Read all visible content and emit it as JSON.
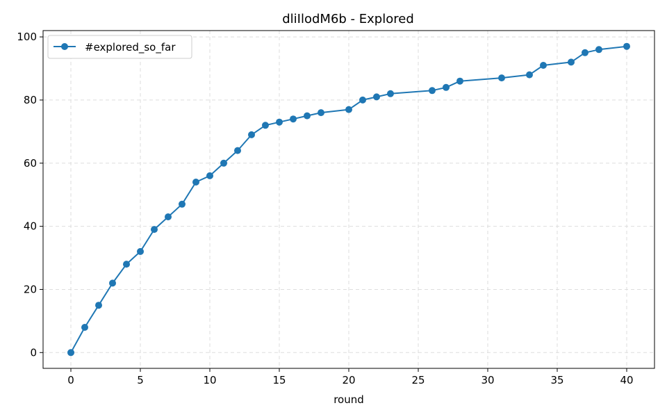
{
  "chart_data": {
    "type": "line",
    "title": "dliIlodM6b - Explored",
    "xlabel": "round",
    "ylabel": "",
    "xlim": [
      -2,
      42
    ],
    "ylim": [
      -5,
      102
    ],
    "xticks": [
      0,
      5,
      10,
      15,
      20,
      25,
      30,
      35,
      40
    ],
    "yticks": [
      0,
      20,
      40,
      60,
      80,
      100
    ],
    "grid": true,
    "legend_position": "top-left",
    "series": [
      {
        "name": "#explored_so_far",
        "color": "#1f77b4",
        "marker": "circle",
        "x": [
          0,
          1,
          2,
          3,
          4,
          5,
          6,
          7,
          8,
          9,
          10,
          11,
          12,
          13,
          14,
          15,
          16,
          17,
          18,
          20,
          21,
          22,
          23,
          26,
          27,
          28,
          31,
          33,
          34,
          36,
          37,
          38,
          40
        ],
        "y": [
          0,
          8,
          15,
          22,
          28,
          32,
          39,
          43,
          47,
          54,
          56,
          60,
          64,
          69,
          72,
          73,
          74,
          75,
          76,
          77,
          80,
          81,
          82,
          83,
          84,
          86,
          87,
          88,
          91,
          92,
          95,
          96,
          97
        ]
      }
    ]
  }
}
